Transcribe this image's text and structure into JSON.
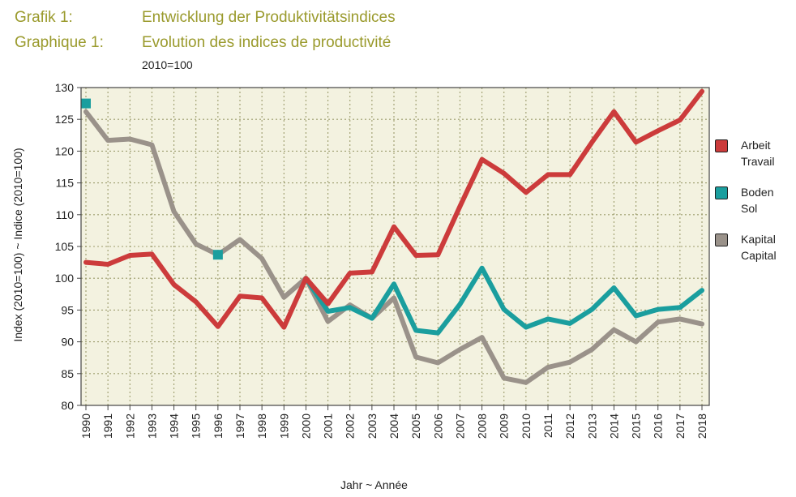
{
  "header": {
    "line1_label": "Grafik 1:",
    "line1_title": "Entwicklung der Produktivitätsindices",
    "line2_label": "Graphique 1:",
    "line2_title": "Evolution des indices de productivité",
    "subtitle": "2010=100"
  },
  "chart_data": {
    "type": "line",
    "xlabel": "Jahr  ~  Année",
    "ylabel": "Index (2010=100)  ~  Indice (2010=100)",
    "ylim": [
      80,
      130
    ],
    "yticks": [
      80,
      85,
      90,
      95,
      100,
      105,
      110,
      115,
      120,
      125,
      130
    ],
    "grid": true,
    "legend_position": "right",
    "x": [
      "1990",
      "1991",
      "1992",
      "1993",
      "1994",
      "1995",
      "1996",
      "1997",
      "1998",
      "1999",
      "2000",
      "2001",
      "2002",
      "2003",
      "2004",
      "2005",
      "2006",
      "2007",
      "2008",
      "2009",
      "2010",
      "2011",
      "2012",
      "2013",
      "2014",
      "2015",
      "2016",
      "2017",
      "2018"
    ],
    "series": [
      {
        "name": "Arbeit / Travail",
        "legend_line1": "Arbeit",
        "legend_line2": "Travail",
        "color": "#cc3b3b",
        "values": [
          102.5,
          102.2,
          103.6,
          103.8,
          99.0,
          96.3,
          92.4,
          97.2,
          96.9,
          92.3,
          100.0,
          96.0,
          100.8,
          101.0,
          108.1,
          103.6,
          103.7,
          111.3,
          118.7,
          116.5,
          113.5,
          116.3,
          116.3,
          121.4,
          126.2,
          121.4,
          123.2,
          124.9,
          129.4
        ]
      },
      {
        "name": "Boden / Sol",
        "legend_line1": "Boden",
        "legend_line2": "Sol",
        "color": "#1a9e9e",
        "values": [
          127.5,
          null,
          null,
          null,
          null,
          null,
          103.7,
          null,
          null,
          null,
          100.0,
          94.8,
          95.4,
          93.7,
          99.1,
          91.8,
          91.4,
          95.9,
          101.6,
          95.1,
          92.3,
          93.6,
          92.9,
          95.1,
          98.5,
          94.1,
          95.1,
          95.4,
          98.1
        ]
      },
      {
        "name": "Kapital / Capital",
        "legend_line1": "Kapital",
        "legend_line2": "Capital",
        "color": "#9a928a",
        "values": [
          126.2,
          121.7,
          121.9,
          121.0,
          110.5,
          105.4,
          103.7,
          106.1,
          103.1,
          97.0,
          100.0,
          93.2,
          95.8,
          93.7,
          96.9,
          87.6,
          86.7,
          88.8,
          90.7,
          84.3,
          83.6,
          86.0,
          86.8,
          88.8,
          91.9,
          90.0,
          93.1,
          93.6,
          92.8
        ]
      }
    ],
    "plot_background": "#f3f2e0",
    "grid_color": "#9c9c6c"
  }
}
